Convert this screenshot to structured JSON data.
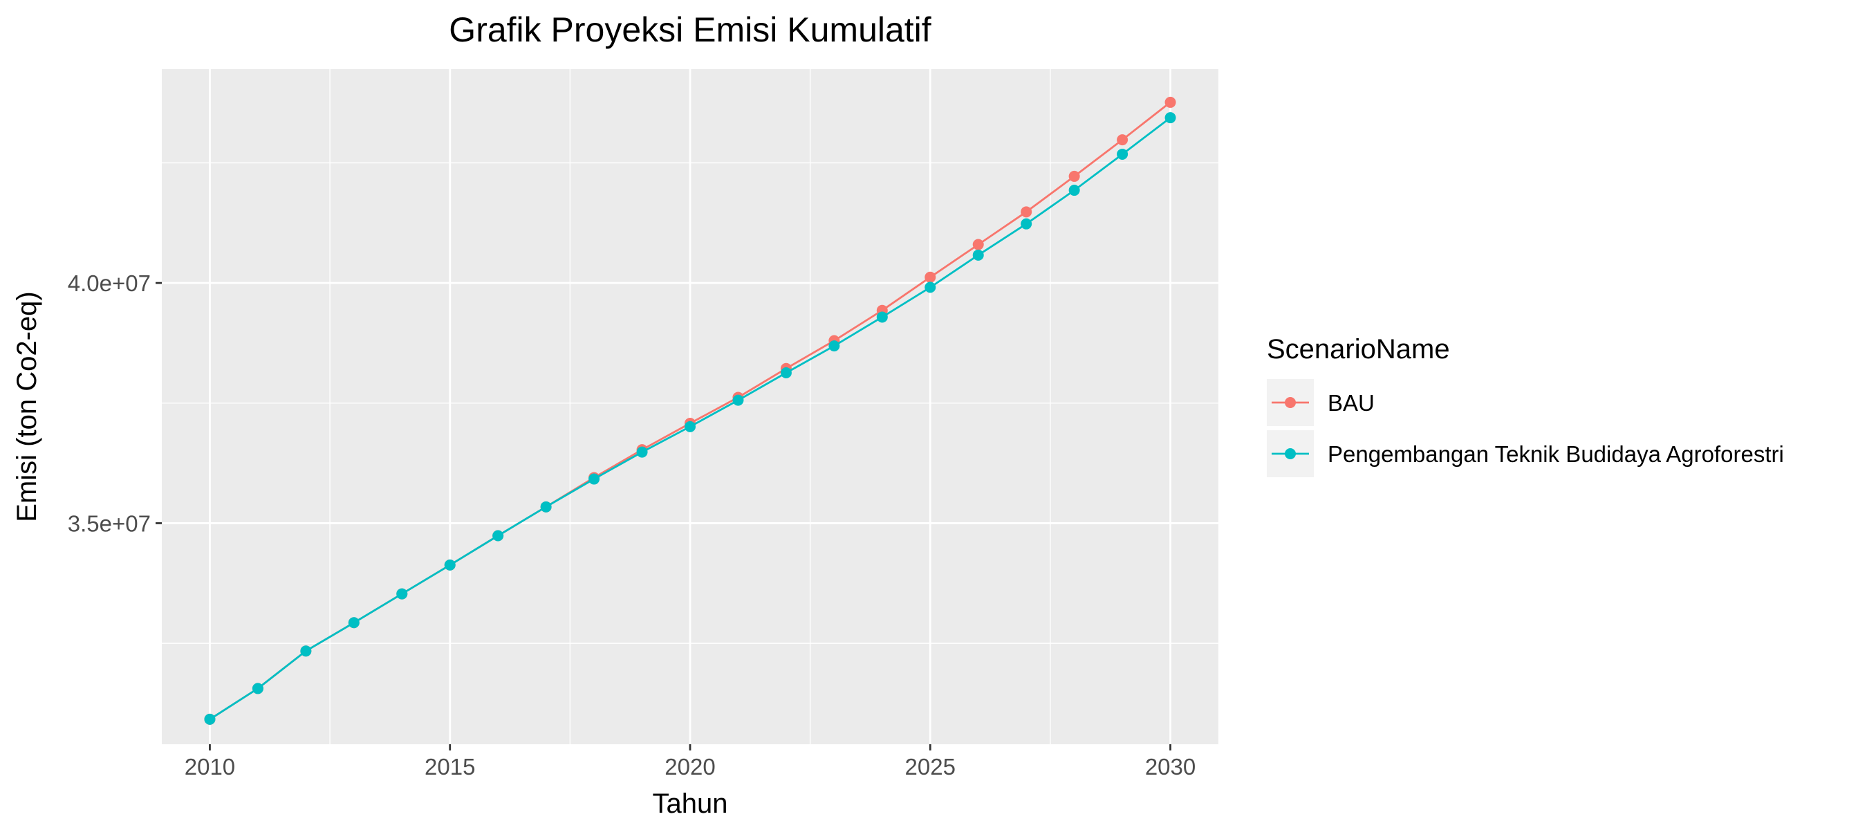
{
  "chart_data": {
    "type": "line",
    "title": "Grafik Proyeksi Emisi Kumulatif",
    "xlabel": "Tahun",
    "ylabel": "Emisi (ton Co2-eq)",
    "xlim": [
      2009,
      2031
    ],
    "ylim": [
      30400000,
      44450000
    ],
    "x_ticks": [
      2010,
      2015,
      2020,
      2025,
      2030
    ],
    "x_tick_labels": [
      "2010",
      "2015",
      "2020",
      "2025",
      "2030"
    ],
    "y_ticks": [
      35000000,
      40000000
    ],
    "y_tick_labels": [
      "3.5e+07",
      "4.0e+07"
    ],
    "grid": true,
    "legend": {
      "title": "ScenarioName",
      "placement": "right"
    },
    "x": [
      2010,
      2011,
      2012,
      2013,
      2014,
      2015,
      2016,
      2017,
      2018,
      2019,
      2020,
      2021,
      2022,
      2023,
      2024,
      2025,
      2026,
      2027,
      2028,
      2029,
      2030
    ],
    "series": [
      {
        "name": "BAU",
        "color": "#F8766D",
        "values": [
          30920000,
          31560000,
          32340000,
          32930000,
          33530000,
          34130000,
          34740000,
          35340000,
          35950000,
          36530000,
          37080000,
          37620000,
          38220000,
          38800000,
          39430000,
          40120000,
          40800000,
          41480000,
          42220000,
          42980000,
          43760000
        ]
      },
      {
        "name": "Pengembangan Teknik Budidaya Agroforestri",
        "color": "#00BFC4",
        "values": [
          30920000,
          31560000,
          32340000,
          32930000,
          33530000,
          34130000,
          34740000,
          35340000,
          35920000,
          36480000,
          37010000,
          37560000,
          38130000,
          38690000,
          39290000,
          39910000,
          40580000,
          41230000,
          41930000,
          42680000,
          43440000
        ]
      }
    ]
  }
}
